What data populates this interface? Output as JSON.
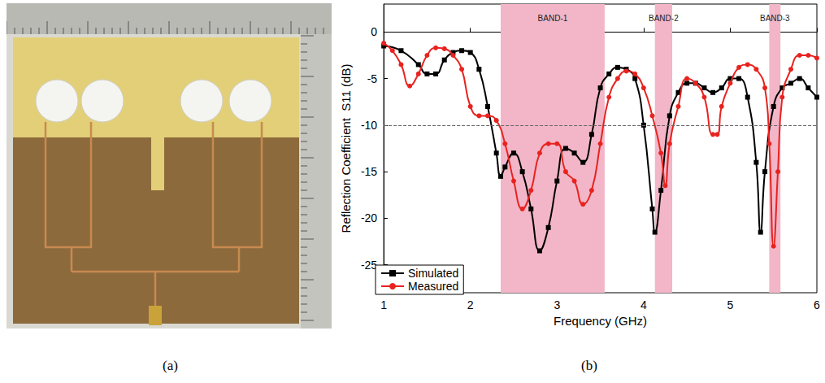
{
  "captions": [
    "(a)",
    "(b)"
  ],
  "chart_data": {
    "type": "line",
    "x_label": "Frequency (GHz)",
    "y_label": "Reflection Coefficient  S11 (dB)",
    "xlim": [
      1,
      6
    ],
    "xticks": [
      1,
      2,
      3,
      4,
      5,
      6
    ],
    "ylim": [
      -28,
      3
    ],
    "yticks": [
      -25,
      -20,
      -15,
      -10,
      -5,
      0
    ],
    "grid": false,
    "legend": "lower left",
    "reference_line": -10,
    "bands": [
      {
        "label": "BAND-1",
        "x": [
          2.35,
          3.55
        ]
      },
      {
        "label": "BAND-2",
        "x": [
          4.13,
          4.33
        ]
      },
      {
        "label": "BAND-3",
        "x": [
          5.45,
          5.58
        ]
      }
    ],
    "band_color": "#f2b6c8",
    "series": [
      {
        "name": "Simulated",
        "color": "#000000",
        "marker": "square",
        "x": [
          1.0,
          1.2,
          1.4,
          1.5,
          1.6,
          1.7,
          1.8,
          1.9,
          2.0,
          2.1,
          2.2,
          2.3,
          2.35,
          2.4,
          2.5,
          2.6,
          2.7,
          2.8,
          2.9,
          3.0,
          3.1,
          3.2,
          3.3,
          3.4,
          3.5,
          3.6,
          3.7,
          3.8,
          3.9,
          4.0,
          4.1,
          4.13,
          4.2,
          4.3,
          4.4,
          4.5,
          4.6,
          4.7,
          4.8,
          4.9,
          5.0,
          5.1,
          5.2,
          5.3,
          5.35,
          5.4,
          5.5,
          5.6,
          5.7,
          5.8,
          5.9,
          6.0
        ],
        "values": [
          -1.5,
          -2,
          -3.5,
          -4.5,
          -4.5,
          -3,
          -2.2,
          -2,
          -2.2,
          -4,
          -8,
          -13,
          -15.5,
          -14.5,
          -13,
          -15,
          -19,
          -23.5,
          -21,
          -16,
          -12.5,
          -13,
          -14,
          -11,
          -6,
          -4.5,
          -3.8,
          -4,
          -5,
          -10,
          -19,
          -21.5,
          -17,
          -9,
          -6.5,
          -5.5,
          -5.5,
          -6,
          -6.5,
          -6,
          -5,
          -5,
          -7,
          -14,
          -21.5,
          -15,
          -8,
          -6,
          -5.5,
          -5,
          -6,
          -7
        ]
      },
      {
        "name": "Measured",
        "color": "#e8231f",
        "marker": "circle",
        "x": [
          1.0,
          1.1,
          1.2,
          1.3,
          1.4,
          1.5,
          1.6,
          1.7,
          1.8,
          1.9,
          2.0,
          2.1,
          2.2,
          2.3,
          2.4,
          2.5,
          2.6,
          2.7,
          2.8,
          2.9,
          3.0,
          3.1,
          3.2,
          3.3,
          3.4,
          3.5,
          3.6,
          3.7,
          3.8,
          3.9,
          4.0,
          4.1,
          4.2,
          4.25,
          4.3,
          4.4,
          4.5,
          4.6,
          4.7,
          4.8,
          4.85,
          4.9,
          5.0,
          5.1,
          5.2,
          5.3,
          5.4,
          5.45,
          5.5,
          5.55,
          5.6,
          5.7,
          5.8,
          5.9,
          6.0
        ],
        "values": [
          -1.2,
          -2,
          -3.5,
          -5.8,
          -4.5,
          -2.5,
          -1.7,
          -1.8,
          -2.5,
          -4,
          -8,
          -9,
          -9,
          -9.5,
          -12,
          -16,
          -19,
          -17,
          -13,
          -12,
          -12,
          -15,
          -16,
          -18.5,
          -17,
          -12,
          -7,
          -5,
          -4.2,
          -4.5,
          -6,
          -9,
          -13,
          -16.5,
          -12,
          -8,
          -5,
          -5.5,
          -7,
          -11,
          -11,
          -8,
          -5.5,
          -3.8,
          -3.5,
          -4,
          -6,
          -12,
          -23,
          -15,
          -7,
          -4,
          -2.5,
          -2.5,
          -2.8
        ]
      }
    ]
  }
}
